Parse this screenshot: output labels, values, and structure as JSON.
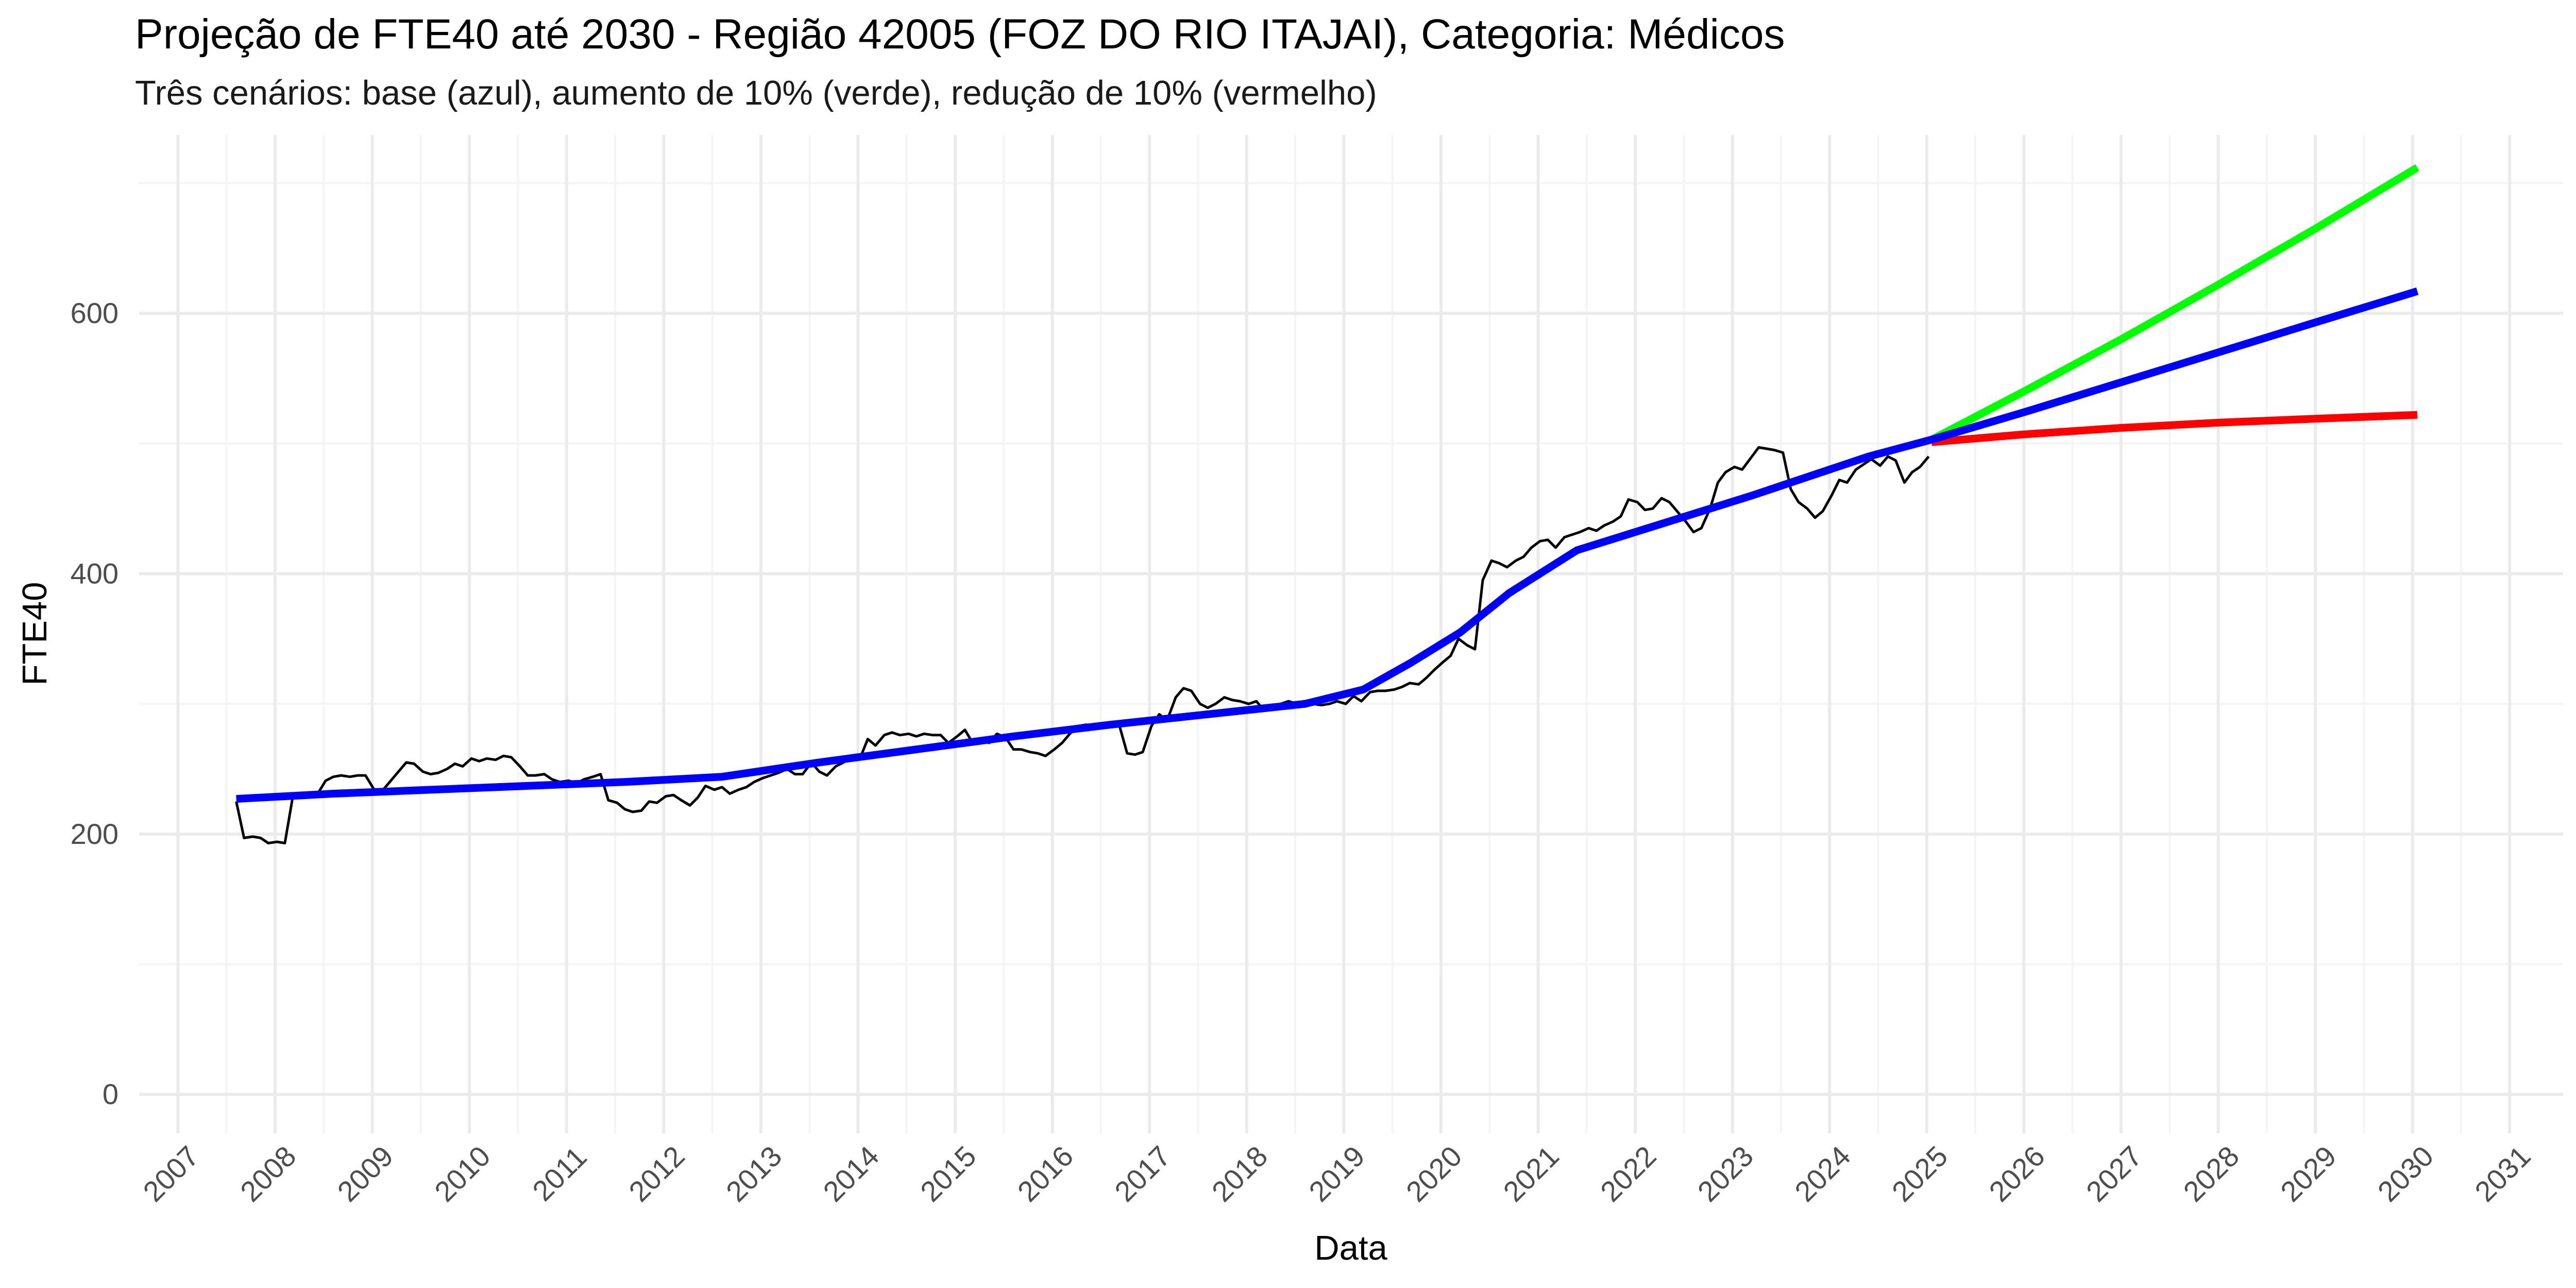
{
  "chart_data": {
    "type": "line",
    "title": "Projeção de FTE40 até 2030 - Região 42005 (FOZ DO RIO ITAJAI), Categoria: Médicos",
    "subtitle": "Três cenários: base (azul), aumento de 10% (verde), redução de 10% (vermelho)",
    "xlabel": "Data",
    "ylabel": "FTE40",
    "x_ticks": [
      "2007",
      "2008",
      "2009",
      "2010",
      "2011",
      "2012",
      "2013",
      "2014",
      "2015",
      "2016",
      "2017",
      "2018",
      "2019",
      "2020",
      "2021",
      "2022",
      "2023",
      "2024",
      "2025",
      "2026",
      "2027",
      "2028",
      "2029",
      "2030",
      "2031"
    ],
    "y_ticks": [
      0,
      200,
      400,
      600
    ],
    "xlim": [
      2006.6,
      2031.55
    ],
    "ylim": [
      -30,
      737
    ],
    "grid": true,
    "colors": {
      "observed": "#000000",
      "base": "#0000ff",
      "increase": "#00ff00",
      "decrease": "#ff0000",
      "grid_major": "#ebebeb",
      "grid_minor": "#f4f4f4"
    },
    "series": [
      {
        "key": "observed",
        "points": [
          [
            2007.6,
            225
          ],
          [
            2007.68,
            197
          ],
          [
            2007.77,
            198
          ],
          [
            2007.85,
            197
          ],
          [
            2007.93,
            193
          ],
          [
            2008.02,
            194
          ],
          [
            2008.1,
            193
          ],
          [
            2008.18,
            228
          ],
          [
            2008.27,
            231
          ],
          [
            2008.35,
            232
          ],
          [
            2008.43,
            230
          ],
          [
            2008.52,
            241
          ],
          [
            2008.6,
            244
          ],
          [
            2008.68,
            245
          ],
          [
            2008.77,
            244
          ],
          [
            2008.85,
            245
          ],
          [
            2008.93,
            245
          ],
          [
            2009.02,
            234
          ],
          [
            2009.1,
            233
          ],
          [
            2009.18,
            240
          ],
          [
            2009.27,
            248
          ],
          [
            2009.35,
            255
          ],
          [
            2009.43,
            254
          ],
          [
            2009.52,
            248
          ],
          [
            2009.6,
            246
          ],
          [
            2009.68,
            247
          ],
          [
            2009.77,
            250
          ],
          [
            2009.85,
            254
          ],
          [
            2009.93,
            252
          ],
          [
            2010.02,
            258
          ],
          [
            2010.1,
            256
          ],
          [
            2010.18,
            258
          ],
          [
            2010.27,
            257
          ],
          [
            2010.35,
            260
          ],
          [
            2010.43,
            259
          ],
          [
            2010.52,
            252
          ],
          [
            2010.6,
            245
          ],
          [
            2010.68,
            245
          ],
          [
            2010.77,
            246
          ],
          [
            2010.85,
            242
          ],
          [
            2010.93,
            240
          ],
          [
            2011.02,
            241
          ],
          [
            2011.1,
            239
          ],
          [
            2011.18,
            242
          ],
          [
            2011.27,
            244
          ],
          [
            2011.35,
            246
          ],
          [
            2011.43,
            226
          ],
          [
            2011.52,
            224
          ],
          [
            2011.6,
            219
          ],
          [
            2011.68,
            217
          ],
          [
            2011.77,
            218
          ],
          [
            2011.85,
            225
          ],
          [
            2011.93,
            224
          ],
          [
            2012.02,
            229
          ],
          [
            2012.1,
            230
          ],
          [
            2012.18,
            226
          ],
          [
            2012.27,
            222
          ],
          [
            2012.35,
            228
          ],
          [
            2012.43,
            237
          ],
          [
            2012.52,
            234
          ],
          [
            2012.6,
            236
          ],
          [
            2012.68,
            231
          ],
          [
            2012.77,
            234
          ],
          [
            2012.85,
            236
          ],
          [
            2012.93,
            240
          ],
          [
            2013.02,
            243
          ],
          [
            2013.1,
            245
          ],
          [
            2013.18,
            247
          ],
          [
            2013.27,
            250
          ],
          [
            2013.35,
            246
          ],
          [
            2013.43,
            246
          ],
          [
            2013.52,
            255
          ],
          [
            2013.6,
            248
          ],
          [
            2013.68,
            245
          ],
          [
            2013.77,
            252
          ],
          [
            2013.85,
            255
          ],
          [
            2013.93,
            260
          ],
          [
            2014.02,
            258
          ],
          [
            2014.1,
            273
          ],
          [
            2014.18,
            268
          ],
          [
            2014.27,
            276
          ],
          [
            2014.35,
            278
          ],
          [
            2014.43,
            276
          ],
          [
            2014.52,
            277
          ],
          [
            2014.6,
            275
          ],
          [
            2014.68,
            277
          ],
          [
            2014.77,
            276
          ],
          [
            2014.85,
            276
          ],
          [
            2014.93,
            270
          ],
          [
            2015.02,
            275
          ],
          [
            2015.1,
            280
          ],
          [
            2015.18,
            270
          ],
          [
            2015.27,
            272
          ],
          [
            2015.35,
            270
          ],
          [
            2015.43,
            277
          ],
          [
            2015.52,
            274
          ],
          [
            2015.6,
            265
          ],
          [
            2015.68,
            265
          ],
          [
            2015.77,
            263
          ],
          [
            2015.85,
            262
          ],
          [
            2015.93,
            260
          ],
          [
            2016.02,
            265
          ],
          [
            2016.1,
            270
          ],
          [
            2016.18,
            277
          ],
          [
            2016.27,
            283
          ],
          [
            2016.35,
            284
          ],
          [
            2016.43,
            283
          ],
          [
            2016.52,
            282
          ],
          [
            2016.6,
            285
          ],
          [
            2016.68,
            286
          ],
          [
            2016.77,
            262
          ],
          [
            2016.85,
            261
          ],
          [
            2016.93,
            263
          ],
          [
            2017.02,
            283
          ],
          [
            2017.1,
            292
          ],
          [
            2017.18,
            287
          ],
          [
            2017.27,
            305
          ],
          [
            2017.35,
            312
          ],
          [
            2017.43,
            310
          ],
          [
            2017.52,
            300
          ],
          [
            2017.6,
            297
          ],
          [
            2017.68,
            300
          ],
          [
            2017.77,
            305
          ],
          [
            2017.85,
            303
          ],
          [
            2017.93,
            302
          ],
          [
            2018.02,
            300
          ],
          [
            2018.1,
            302
          ],
          [
            2018.18,
            295
          ],
          [
            2018.27,
            296
          ],
          [
            2018.35,
            300
          ],
          [
            2018.43,
            302
          ],
          [
            2018.52,
            300
          ],
          [
            2018.6,
            298
          ],
          [
            2018.68,
            300
          ],
          [
            2018.77,
            299
          ],
          [
            2018.85,
            300
          ],
          [
            2018.93,
            302
          ],
          [
            2019.02,
            300
          ],
          [
            2019.1,
            306
          ],
          [
            2019.18,
            302
          ],
          [
            2019.27,
            309
          ],
          [
            2019.35,
            310
          ],
          [
            2019.43,
            310
          ],
          [
            2019.52,
            311
          ],
          [
            2019.6,
            313
          ],
          [
            2019.68,
            316
          ],
          [
            2019.77,
            315
          ],
          [
            2019.85,
            320
          ],
          [
            2019.93,
            326
          ],
          [
            2020.02,
            332
          ],
          [
            2020.1,
            337
          ],
          [
            2020.18,
            350
          ],
          [
            2020.27,
            345
          ],
          [
            2020.35,
            342
          ],
          [
            2020.43,
            395
          ],
          [
            2020.52,
            410
          ],
          [
            2020.6,
            408
          ],
          [
            2020.68,
            405
          ],
          [
            2020.77,
            410
          ],
          [
            2020.85,
            413
          ],
          [
            2020.93,
            420
          ],
          [
            2021.02,
            425
          ],
          [
            2021.1,
            426
          ],
          [
            2021.18,
            420
          ],
          [
            2021.27,
            428
          ],
          [
            2021.35,
            430
          ],
          [
            2021.43,
            432
          ],
          [
            2021.52,
            435
          ],
          [
            2021.6,
            433
          ],
          [
            2021.68,
            437
          ],
          [
            2021.77,
            440
          ],
          [
            2021.85,
            444
          ],
          [
            2021.93,
            457
          ],
          [
            2022.02,
            455
          ],
          [
            2022.1,
            449
          ],
          [
            2022.18,
            450
          ],
          [
            2022.27,
            458
          ],
          [
            2022.35,
            455
          ],
          [
            2022.43,
            448
          ],
          [
            2022.52,
            440
          ],
          [
            2022.6,
            432
          ],
          [
            2022.68,
            435
          ],
          [
            2022.77,
            450
          ],
          [
            2022.85,
            470
          ],
          [
            2022.93,
            478
          ],
          [
            2023.02,
            482
          ],
          [
            2023.1,
            480
          ],
          [
            2023.18,
            488
          ],
          [
            2023.27,
            497
          ],
          [
            2023.35,
            496
          ],
          [
            2023.43,
            495
          ],
          [
            2023.52,
            493
          ],
          [
            2023.6,
            465
          ],
          [
            2023.68,
            455
          ],
          [
            2023.77,
            450
          ],
          [
            2023.85,
            443
          ],
          [
            2023.93,
            448
          ],
          [
            2024.02,
            460
          ],
          [
            2024.1,
            472
          ],
          [
            2024.18,
            470
          ],
          [
            2024.27,
            480
          ],
          [
            2024.35,
            484
          ],
          [
            2024.43,
            488
          ],
          [
            2024.52,
            483
          ],
          [
            2024.6,
            490
          ],
          [
            2024.68,
            487
          ],
          [
            2024.77,
            470
          ],
          [
            2024.85,
            478
          ],
          [
            2024.93,
            482
          ],
          [
            2025.02,
            490
          ]
        ]
      },
      {
        "key": "base",
        "points": [
          [
            2007.6,
            227
          ],
          [
            2008.6,
            231
          ],
          [
            2009.6,
            234
          ],
          [
            2010.6,
            237
          ],
          [
            2011.6,
            240
          ],
          [
            2012.6,
            244
          ],
          [
            2013.6,
            255
          ],
          [
            2014.6,
            265
          ],
          [
            2015.6,
            275
          ],
          [
            2016.6,
            284
          ],
          [
            2017.6,
            292
          ],
          [
            2018.6,
            300
          ],
          [
            2019.2,
            311
          ],
          [
            2019.7,
            332
          ],
          [
            2020.2,
            355
          ],
          [
            2020.7,
            385
          ],
          [
            2021.4,
            418
          ],
          [
            2022.0,
            432
          ],
          [
            2022.6,
            446
          ],
          [
            2023.2,
            460
          ],
          [
            2023.8,
            475
          ],
          [
            2024.4,
            490
          ],
          [
            2025.05,
            503
          ],
          [
            2026.0,
            524
          ],
          [
            2027.0,
            547
          ],
          [
            2028.0,
            570
          ],
          [
            2029.0,
            593
          ],
          [
            2030.05,
            617
          ]
        ]
      },
      {
        "key": "increase",
        "points": [
          [
            2025.05,
            503
          ],
          [
            2026.0,
            540
          ],
          [
            2027.0,
            580
          ],
          [
            2028.0,
            622
          ],
          [
            2029.0,
            665
          ],
          [
            2030.05,
            712
          ]
        ]
      },
      {
        "key": "decrease",
        "points": [
          [
            2025.05,
            501
          ],
          [
            2026.0,
            507
          ],
          [
            2027.0,
            512
          ],
          [
            2028.0,
            516
          ],
          [
            2029.0,
            519
          ],
          [
            2030.05,
            522
          ]
        ]
      }
    ]
  }
}
